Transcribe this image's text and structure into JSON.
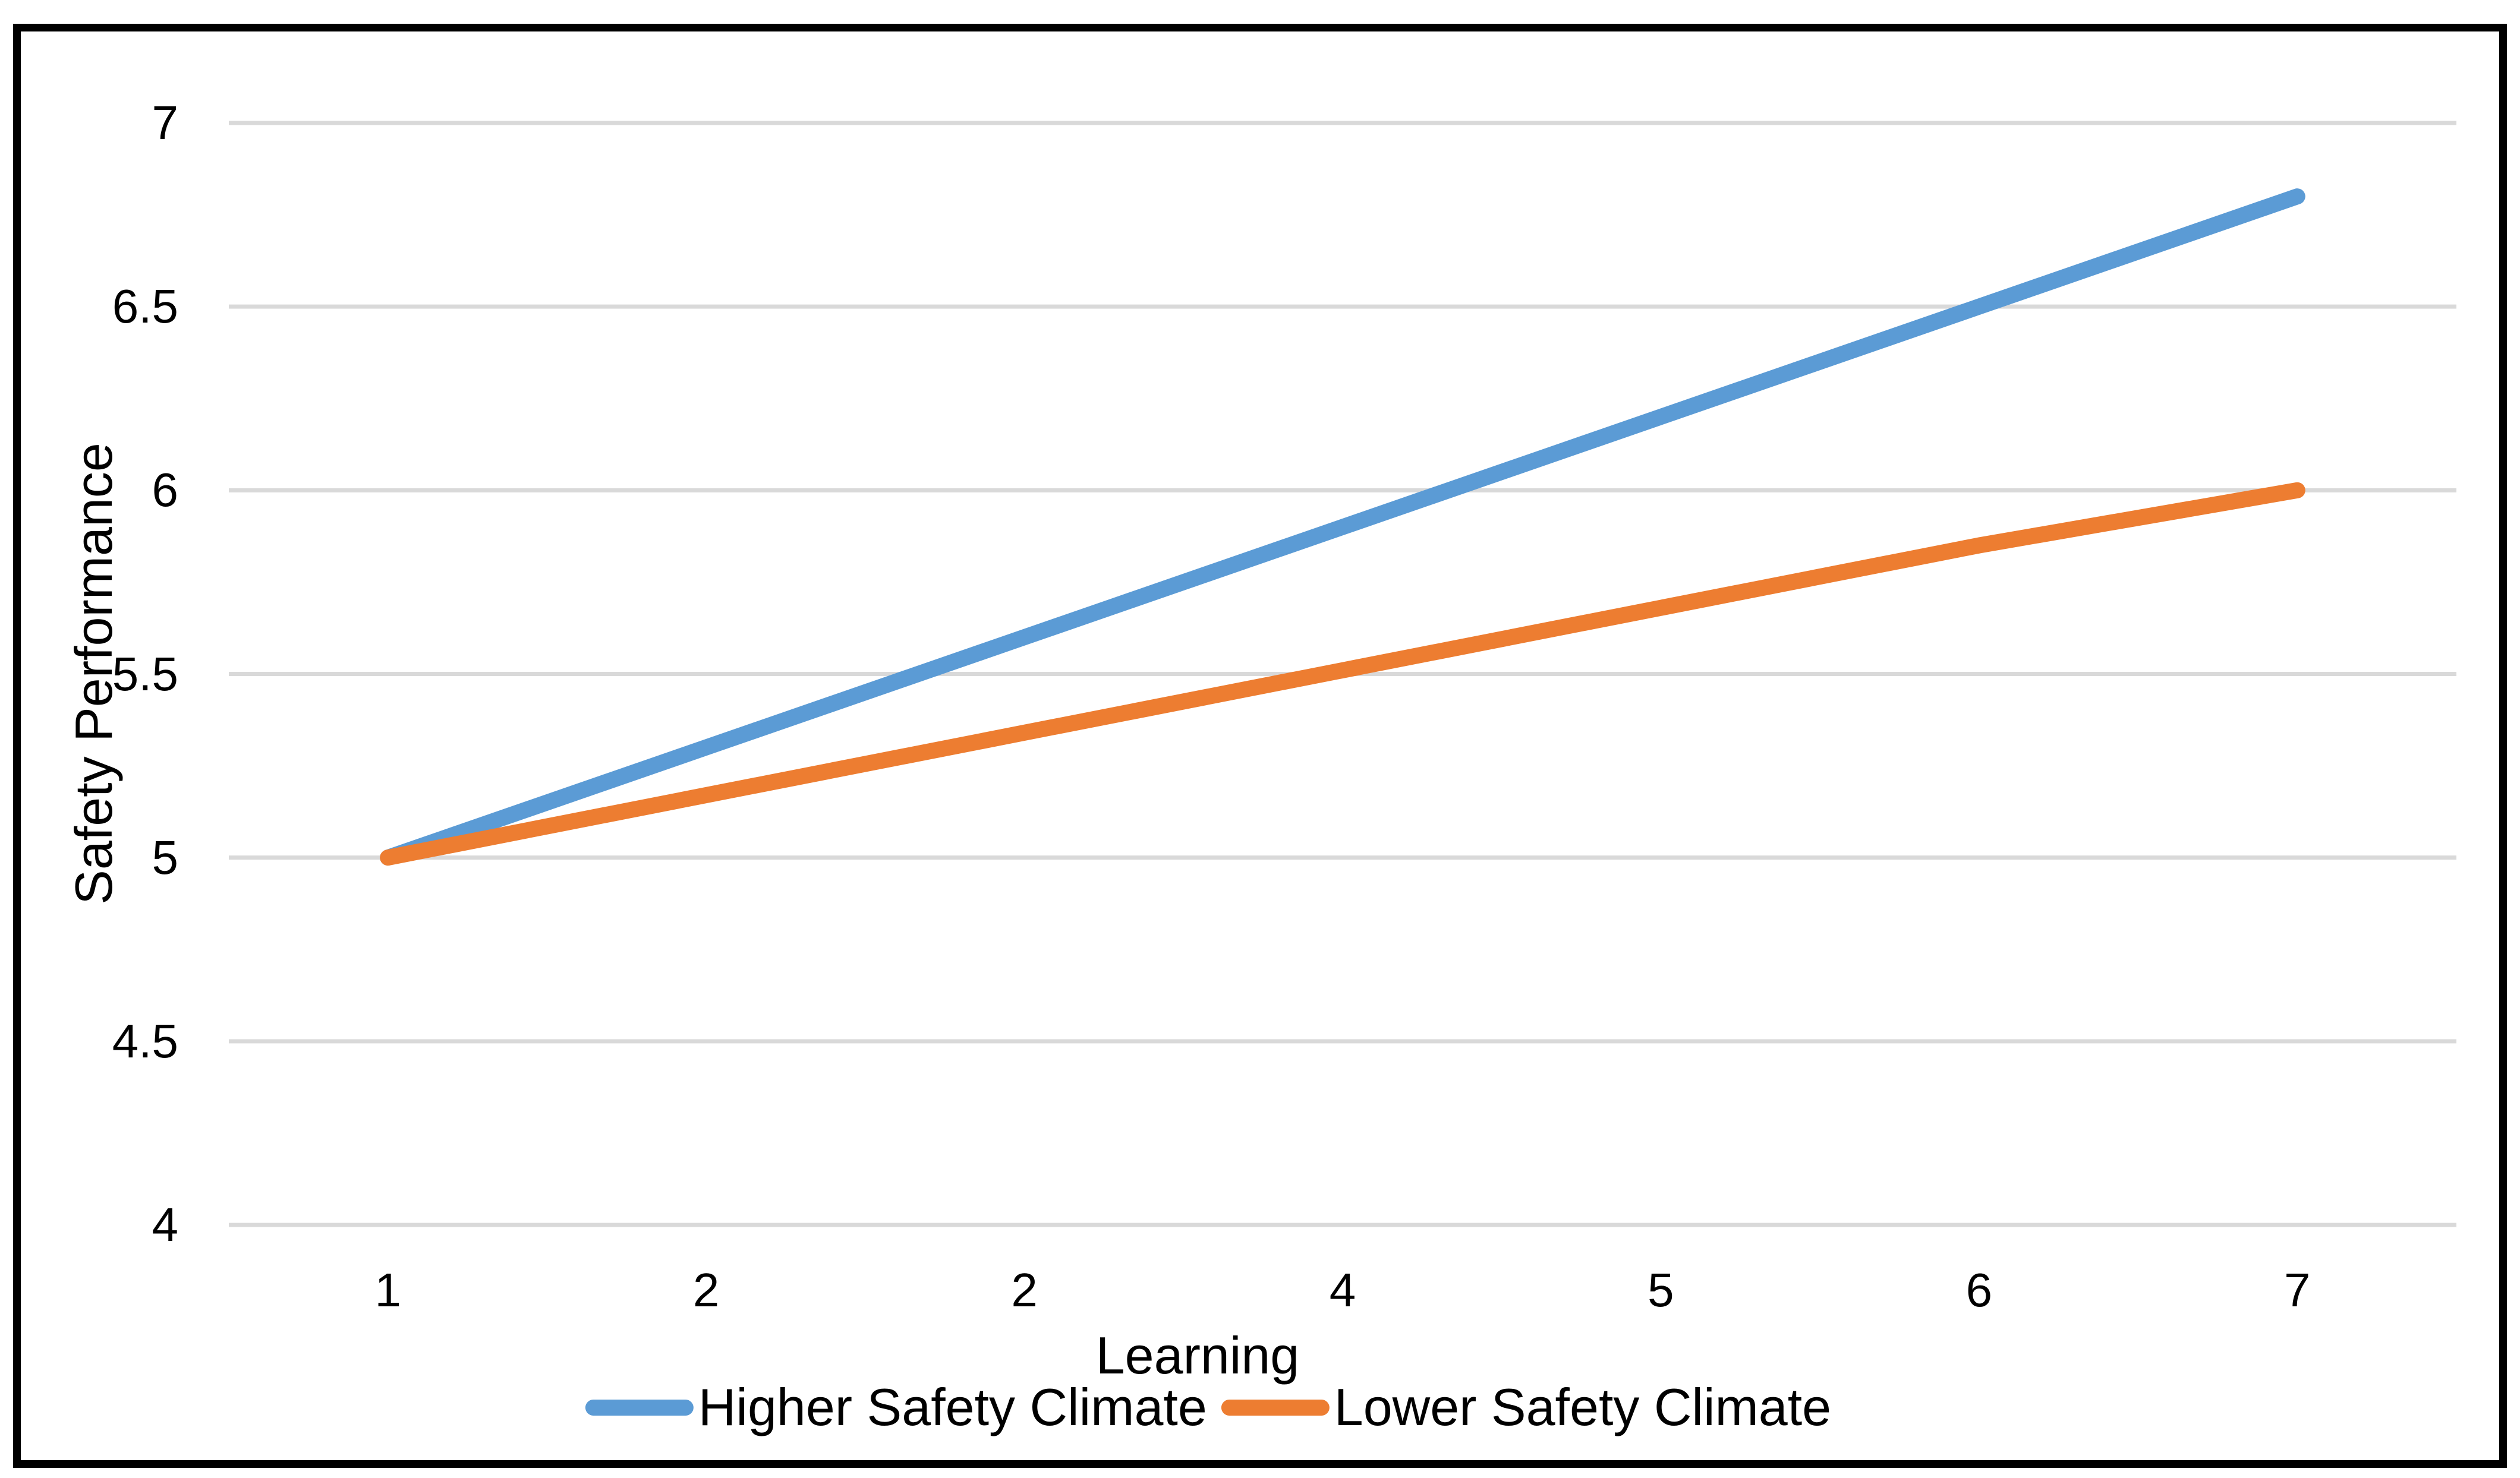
{
  "chart_data": {
    "type": "line",
    "title": "",
    "xlabel": "Learning",
    "ylabel": "Safety Performance",
    "x_tick_labels": [
      "1",
      "2",
      "2",
      "4",
      "5",
      "6",
      "7"
    ],
    "y_ticks": [
      7,
      6.5,
      6,
      5.5,
      5,
      4.5,
      4
    ],
    "y_tick_labels": [
      "7",
      "6.5",
      "6",
      "5.5",
      "5",
      "4.5",
      "4"
    ],
    "ylim": [
      4,
      7
    ],
    "grid": "horizontal",
    "legend_position": "bottom",
    "series": [
      {
        "name": "Higher Safety Climate",
        "color": "#5B9BD5",
        "values": [
          5.0,
          5.3,
          5.6,
          5.9,
          6.2,
          6.5,
          6.8
        ]
      },
      {
        "name": "Lower Safety Climate",
        "color": "#ED7D31",
        "values": [
          5.0,
          5.17,
          5.34,
          5.51,
          5.68,
          5.85,
          6.0
        ]
      }
    ]
  },
  "colors": {
    "gridline": "#D9D9D9",
    "frame": "#000000",
    "text": "#000000",
    "background": "#FFFFFF"
  }
}
